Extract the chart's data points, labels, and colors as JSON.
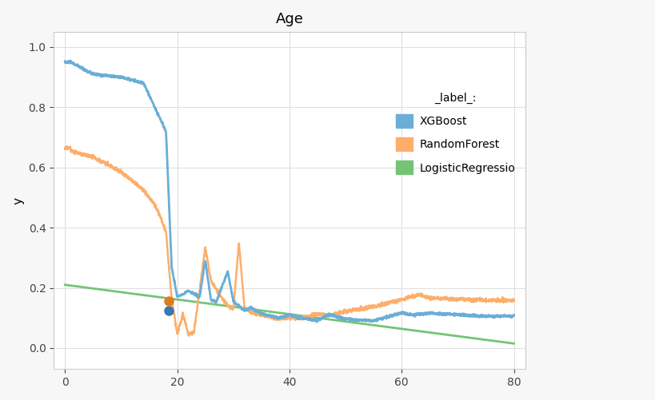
{
  "title": "Age",
  "ylabel": "y",
  "xlim": [
    -2,
    82
  ],
  "ylim": [
    -0.07,
    1.05
  ],
  "xticks": [
    0,
    20,
    40,
    60,
    80
  ],
  "yticks": [
    0,
    0.2,
    0.4,
    0.6,
    0.8,
    1.0
  ],
  "colors": {
    "xgboost": "#6aaed6",
    "randomforest": "#fdae6b",
    "logistic": "#74c476"
  },
  "legend_title": "_label_:",
  "legend_labels": [
    "XGBoost",
    "RandomForest",
    "LogisticRegressio"
  ],
  "dot_xgb": [
    18.5,
    0.125
  ],
  "dot_rf": [
    18.5,
    0.155
  ],
  "background_color": "#f7f7f7",
  "plot_background": "#ffffff",
  "title_fontsize": 13,
  "axis_fontsize": 11,
  "grid_color": "#e0e0e0"
}
